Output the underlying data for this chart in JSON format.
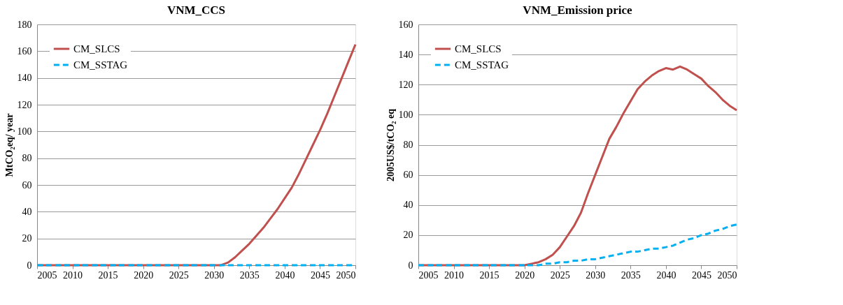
{
  "chart_data": [
    {
      "type": "line",
      "title": "VNM_CCS",
      "ylabel": "MtCO₂eq/ year",
      "x": [
        2005,
        2006,
        2007,
        2008,
        2009,
        2010,
        2011,
        2012,
        2013,
        2014,
        2015,
        2016,
        2017,
        2018,
        2019,
        2020,
        2021,
        2022,
        2023,
        2024,
        2025,
        2026,
        2027,
        2028,
        2029,
        2030,
        2031,
        2032,
        2033,
        2034,
        2035,
        2036,
        2037,
        2038,
        2039,
        2040,
        2041,
        2042,
        2043,
        2044,
        2045,
        2046,
        2047,
        2048,
        2049,
        2050
      ],
      "series": [
        {
          "name": "CM_SLCS",
          "color": "#c0504d",
          "line_style": "solid",
          "values": [
            0,
            0,
            0,
            0,
            0,
            0,
            0,
            0,
            0,
            0,
            0,
            0,
            0,
            0,
            0,
            0,
            0,
            0,
            0,
            0,
            0,
            0,
            0,
            0,
            0,
            0,
            0,
            2,
            6,
            11,
            16,
            22,
            28,
            35,
            42,
            50,
            58,
            68,
            79,
            90,
            101,
            113,
            126,
            139,
            152,
            165
          ]
        },
        {
          "name": "CM_SSTAG",
          "color": "#00b0f0",
          "line_style": "dashed",
          "values": [
            0,
            0,
            0,
            0,
            0,
            0,
            0,
            0,
            0,
            0,
            0,
            0,
            0,
            0,
            0,
            0,
            0,
            0,
            0,
            0,
            0,
            0,
            0,
            0,
            0,
            0,
            0,
            0,
            0,
            0,
            0,
            0,
            0,
            0,
            0,
            0,
            0,
            0,
            0,
            0,
            0,
            0,
            0,
            0,
            0,
            0
          ]
        }
      ],
      "xlim": [
        2005,
        2050
      ],
      "xticks": [
        2005,
        2010,
        2015,
        2020,
        2025,
        2030,
        2035,
        2040,
        2045,
        2050
      ],
      "ylim": [
        0,
        180
      ],
      "yticks": [
        0,
        20,
        40,
        60,
        80,
        100,
        120,
        140,
        160,
        180
      ],
      "grid": "y",
      "legend": "top left"
    },
    {
      "type": "line",
      "title": "VNM_Emission price",
      "ylabel": "2005US$/tCO₂ eq",
      "x": [
        2005,
        2006,
        2007,
        2008,
        2009,
        2010,
        2011,
        2012,
        2013,
        2014,
        2015,
        2016,
        2017,
        2018,
        2019,
        2020,
        2021,
        2022,
        2023,
        2024,
        2025,
        2026,
        2027,
        2028,
        2029,
        2030,
        2031,
        2032,
        2033,
        2034,
        2035,
        2036,
        2037,
        2038,
        2039,
        2040,
        2041,
        2042,
        2043,
        2044,
        2045,
        2046,
        2047,
        2048,
        2049,
        2050
      ],
      "series": [
        {
          "name": "CM_SLCS",
          "color": "#c0504d",
          "line_style": "solid",
          "values": [
            0,
            0,
            0,
            0,
            0,
            0,
            0,
            0,
            0,
            0,
            0,
            0,
            0,
            0,
            0,
            0,
            1,
            2,
            4,
            7,
            12,
            19,
            26,
            35,
            48,
            60,
            72,
            84,
            92,
            101,
            109,
            117,
            122,
            126,
            129,
            131,
            130,
            132,
            130,
            127,
            124,
            119,
            115,
            110,
            106,
            103
          ]
        },
        {
          "name": "CM_SSTAG",
          "color": "#00b0f0",
          "line_style": "dashed",
          "values": [
            0,
            0,
            0,
            0,
            0,
            0,
            0,
            0,
            0,
            0,
            0,
            0,
            0,
            0,
            0,
            0,
            0,
            0,
            1,
            1,
            2,
            2,
            3,
            3,
            4,
            4,
            5,
            6,
            7,
            8,
            9,
            9,
            10,
            11,
            11,
            12,
            13,
            15,
            17,
            18,
            20,
            21,
            23,
            24,
            26,
            27
          ]
        }
      ],
      "xlim": [
        2005,
        2050
      ],
      "xticks": [
        2005,
        2010,
        2015,
        2020,
        2025,
        2030,
        2035,
        2040,
        2045,
        2050
      ],
      "ylim": [
        0,
        160
      ],
      "yticks": [
        0,
        20,
        40,
        60,
        80,
        100,
        120,
        140,
        160
      ],
      "grid": "y",
      "legend": "top left"
    }
  ]
}
